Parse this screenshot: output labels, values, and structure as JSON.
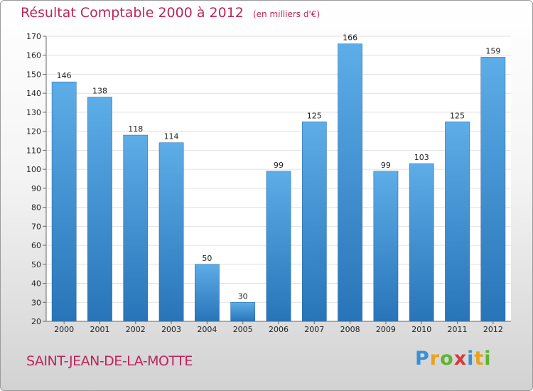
{
  "header": {
    "title": "Résultat Comptable 2000 à 2012",
    "unit": "(en milliers d'€)"
  },
  "footer": {
    "city": "SAINT-JEAN-DE-LA-MOTTE",
    "logo": "Proxiti"
  },
  "colors": {
    "title": "#c0245c",
    "bar_top": "#5dade8",
    "bar_bottom": "#2874b8",
    "grid": "#e0e0e0"
  },
  "chart_data": {
    "type": "bar",
    "title": "Résultat Comptable 2000 à 2012",
    "subtitle": "(en milliers d'€)",
    "xlabel": "",
    "ylabel": "",
    "categories": [
      "2000",
      "2001",
      "2002",
      "2003",
      "2004",
      "2005",
      "2006",
      "2007",
      "2008",
      "2009",
      "2010",
      "2011",
      "2012"
    ],
    "values": [
      146,
      138,
      118,
      114,
      50,
      30,
      99,
      125,
      166,
      99,
      103,
      125,
      159
    ],
    "ylim": [
      20,
      170
    ],
    "yticks": [
      20,
      30,
      40,
      50,
      60,
      70,
      80,
      90,
      100,
      110,
      120,
      130,
      140,
      150,
      160,
      170
    ],
    "grid": true,
    "legend": "none"
  }
}
